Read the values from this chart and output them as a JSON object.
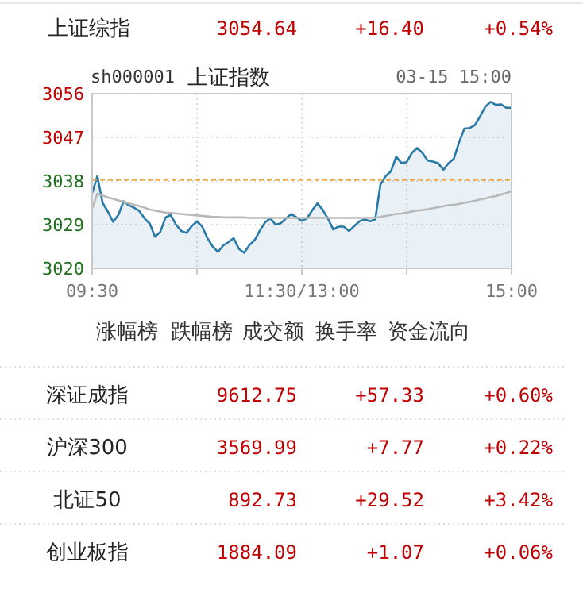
{
  "chart_data": {
    "type": "area",
    "title": "上证指数",
    "subtitle": "03-15 15:00",
    "annotations": [
      "上证综指",
      "3054.64",
      "+16.40",
      "+0.54%",
      "sh000001",
      "涨幅榜",
      "跌幅榜",
      "成交额",
      "换手率",
      "资金流向",
      "深证成指",
      "9612.75",
      "+57.33",
      "+0.60%",
      "沪深300",
      "3569.99",
      "+7.77",
      "+0.22%",
      "北证50",
      "892.73",
      "+29.52",
      "+3.42%",
      "创业板指",
      "1884.09",
      "+1.07",
      "+0.06%"
    ],
    "categories": [
      "09:30",
      null,
      null,
      null,
      null,
      null,
      null,
      null,
      null,
      null,
      null,
      null,
      null,
      null,
      null,
      null,
      null,
      null,
      null,
      null,
      null,
      null,
      null,
      null,
      null,
      null,
      null,
      null,
      null,
      null,
      null,
      null,
      null,
      null,
      null,
      null,
      null,
      null,
      null,
      null,
      "11:30/13:00",
      null,
      null,
      null,
      null,
      null,
      null,
      null,
      null,
      null,
      null,
      null,
      null,
      null,
      null,
      null,
      null,
      null,
      null,
      null,
      null,
      null,
      null,
      null,
      null,
      null,
      null,
      null,
      null,
      null,
      null,
      null,
      null,
      null,
      null,
      null,
      null,
      null,
      null,
      null,
      "15:00"
    ],
    "ylim": [
      3020,
      3056
    ],
    "yticks": [
      3020,
      3029,
      3038,
      3047,
      3056
    ],
    "grid": true,
    "ref_lines": [
      {
        "axis": "y",
        "value": 3038.24,
        "color": "#f0a030",
        "line_style": "dashed"
      }
    ],
    "series": [
      {
        "type": "area",
        "color": "#2a7aa8",
        "values": [
          3035.5,
          3039,
          3033.5,
          3031.7,
          3029.6,
          3031,
          3033.8,
          3033,
          3032.5,
          3031.8,
          3030.3,
          3029.2,
          3026.5,
          3027.5,
          3030.5,
          3031,
          3029,
          3027.7,
          3027.3,
          3028.7,
          3029.7,
          3028.6,
          3026.2,
          3024.5,
          3023.4,
          3024.7,
          3025.4,
          3026.2,
          3024,
          3023.2,
          3024.8,
          3025.8,
          3027.8,
          3029.5,
          3030.3,
          3029,
          3029.3,
          3030.3,
          3031.2,
          3030.5,
          3029.8,
          3030.3,
          3032,
          3033.4,
          3032,
          3030.2,
          3028,
          3028.6,
          3028.6,
          3027.7,
          3028.7,
          3029.7,
          3030.1,
          3029.7,
          3030.1,
          3037.3,
          3039,
          3040,
          3043,
          3041.7,
          3041.9,
          3043.8,
          3044.8,
          3043.8,
          3042.2,
          3042,
          3041.7,
          3040.3,
          3041.7,
          3042.6,
          3046,
          3048.8,
          3048.9,
          3049.5,
          3051.3,
          3053.3,
          3054.3,
          3053.7,
          3053.8,
          3053.1,
          3053.1
        ]
      },
      {
        "type": "line",
        "color": "#b8b8b8",
        "values": [
          3032.3,
          3035.4,
          3035,
          3034.6,
          3034.3,
          3034,
          3033.7,
          3033.4,
          3033.1,
          3032.8,
          3032.5,
          3032.1,
          3031.9,
          3031.7,
          3031.5,
          3031.4,
          3031.3,
          3031.2,
          3031.1,
          3031,
          3030.9,
          3030.8,
          3030.7,
          3030.6,
          3030.6,
          3030.5,
          3030.5,
          3030.5,
          3030.5,
          3030.5,
          3030.4,
          3030.4,
          3030.4,
          3030.4,
          3030.4,
          3030.4,
          3030.4,
          3030.4,
          3030.4,
          3030.4,
          3030.4,
          3030.4,
          3030.4,
          3030.4,
          3030.4,
          3030.4,
          3030.4,
          3030.4,
          3030.4,
          3030.4,
          3030.4,
          3030.4,
          3030.4,
          3030.4,
          3030.4,
          3030.6,
          3030.8,
          3031,
          3031.2,
          3031.3,
          3031.5,
          3031.7,
          3031.9,
          3032,
          3032.2,
          3032.4,
          3032.6,
          3032.8,
          3033,
          3033.1,
          3033.3,
          3033.5,
          3033.7,
          3033.9,
          3034.2,
          3034.4,
          3034.7,
          3034.9,
          3035.2,
          3035.5,
          3035.9
        ]
      }
    ]
  }
}
